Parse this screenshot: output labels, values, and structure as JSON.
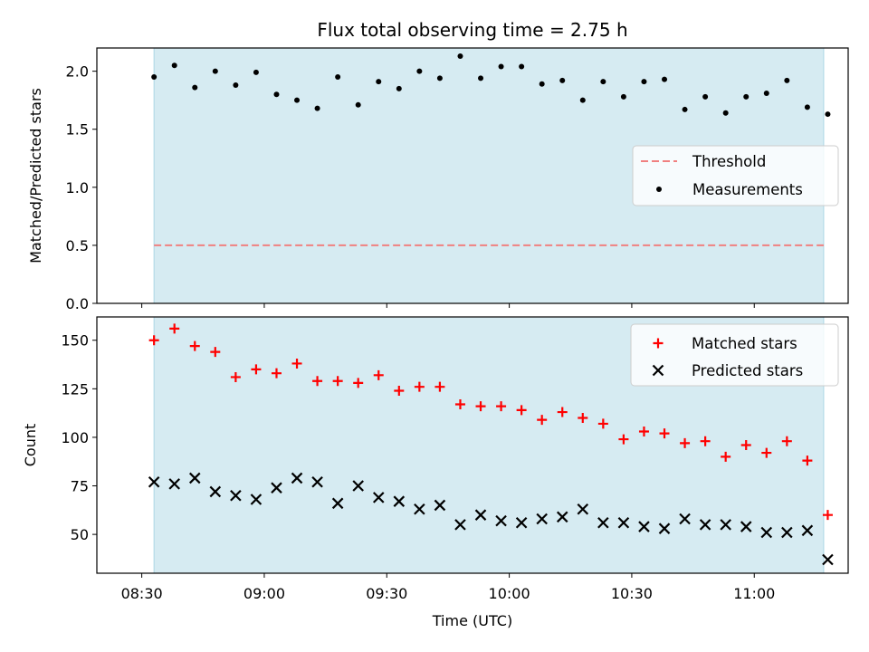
{
  "colors": {
    "shade": "#add8e6",
    "threshold": "#f08080",
    "measurement": "#000000",
    "matched": "#ff0000",
    "predicted": "#000000"
  },
  "chart_data": [
    {
      "type": "scatter",
      "title": "Flux total observing time = 2.75 h",
      "xlabel": "",
      "ylabel": "Matched/Predicted stars",
      "ylim": [
        0,
        2.2
      ],
      "yticks": [
        "0.0",
        "0.5",
        "1.0",
        "1.5",
        "2.0"
      ],
      "shaded_span": [
        "08:33",
        "11:17"
      ],
      "threshold": {
        "name": "Threshold",
        "value": 0.5,
        "style": "dashed"
      },
      "legend_position": "center-right",
      "series": [
        {
          "name": "Measurements",
          "marker": "dot",
          "x": [
            "08:33",
            "08:38",
            "08:43",
            "08:48",
            "08:53",
            "08:58",
            "09:03",
            "09:08",
            "09:13",
            "09:18",
            "09:23",
            "09:28",
            "09:33",
            "09:38",
            "09:43",
            "09:48",
            "09:53",
            "09:58",
            "10:03",
            "10:08",
            "10:13",
            "10:18",
            "10:23",
            "10:28",
            "10:33",
            "10:38",
            "10:43",
            "10:48",
            "10:53",
            "10:58",
            "11:03",
            "11:08",
            "11:13",
            "11:18"
          ],
          "values": [
            1.95,
            2.05,
            1.86,
            2.0,
            1.88,
            1.99,
            1.8,
            1.75,
            1.68,
            1.95,
            1.71,
            1.91,
            1.85,
            2.0,
            1.94,
            2.13,
            1.94,
            2.04,
            2.04,
            1.89,
            1.92,
            1.75,
            1.91,
            1.78,
            1.91,
            1.93,
            1.67,
            1.78,
            1.64,
            1.78,
            1.81,
            1.92,
            1.69,
            1.63
          ]
        }
      ]
    },
    {
      "type": "scatter",
      "xlabel": "Time (UTC)",
      "ylabel": "Count",
      "ylim": [
        30,
        162
      ],
      "yticks": [
        "50",
        "75",
        "100",
        "125",
        "150"
      ],
      "xticks": [
        "08:30",
        "09:00",
        "09:30",
        "10:00",
        "10:30",
        "11:00"
      ],
      "shaded_span": [
        "08:33",
        "11:17"
      ],
      "legend_position": "top-right",
      "series": [
        {
          "name": "Matched stars",
          "marker": "plus",
          "x": [
            "08:33",
            "08:38",
            "08:43",
            "08:48",
            "08:53",
            "08:58",
            "09:03",
            "09:08",
            "09:13",
            "09:18",
            "09:23",
            "09:28",
            "09:33",
            "09:38",
            "09:43",
            "09:48",
            "09:53",
            "09:58",
            "10:03",
            "10:08",
            "10:13",
            "10:18",
            "10:23",
            "10:28",
            "10:33",
            "10:38",
            "10:43",
            "10:48",
            "10:53",
            "10:58",
            "11:03",
            "11:08",
            "11:13",
            "11:18"
          ],
          "values": [
            150,
            156,
            147,
            144,
            131,
            135,
            133,
            138,
            129,
            129,
            128,
            132,
            124,
            126,
            126,
            117,
            116,
            116,
            114,
            109,
            113,
            110,
            107,
            99,
            103,
            102,
            97,
            98,
            90,
            96,
            92,
            98,
            88,
            60
          ]
        },
        {
          "name": "Predicted stars",
          "marker": "x",
          "x": [
            "08:33",
            "08:38",
            "08:43",
            "08:48",
            "08:53",
            "08:58",
            "09:03",
            "09:08",
            "09:13",
            "09:18",
            "09:23",
            "09:28",
            "09:33",
            "09:38",
            "09:43",
            "09:48",
            "09:53",
            "09:58",
            "10:03",
            "10:08",
            "10:13",
            "10:18",
            "10:23",
            "10:28",
            "10:33",
            "10:38",
            "10:43",
            "10:48",
            "10:53",
            "10:58",
            "11:03",
            "11:08",
            "11:13",
            "11:18"
          ],
          "values": [
            77,
            76,
            79,
            72,
            70,
            68,
            74,
            79,
            77,
            66,
            75,
            69,
            67,
            63,
            65,
            55,
            60,
            57,
            56,
            58,
            59,
            63,
            56,
            56,
            54,
            53,
            58,
            55,
            55,
            54,
            51,
            51,
            52,
            37
          ]
        }
      ]
    }
  ]
}
